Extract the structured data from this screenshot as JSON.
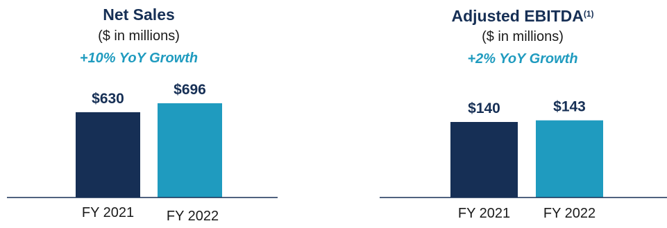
{
  "colors": {
    "dark_navy": "#162f55",
    "teal": "#1f9bbf",
    "axis": "#162f55"
  },
  "net_sales": {
    "title": "Net Sales",
    "subtitle": "($ in millions)",
    "growth": "+10% YoY Growth"
  },
  "ebitda": {
    "title": "Adjusted EBITDA",
    "footnote": "(1)",
    "subtitle": "($ in millions)",
    "growth": "+2% YoY Growth"
  },
  "chart_data": [
    {
      "type": "bar",
      "title": "Net Sales",
      "subtitle": "($ in millions)",
      "categories": [
        "FY 2021",
        "FY 2022"
      ],
      "values": [
        630,
        696
      ],
      "labels": [
        "$630",
        "$696"
      ],
      "colors": [
        "#162f55",
        "#1f9bbf"
      ],
      "xlabel": "",
      "ylabel": "",
      "grid": false,
      "legend": "none"
    },
    {
      "type": "bar",
      "title": "Adjusted EBITDA",
      "subtitle": "($ in millions)",
      "categories": [
        "FY 2021",
        "FY 2022"
      ],
      "values": [
        140,
        143
      ],
      "labels": [
        "$140",
        "$143"
      ],
      "colors": [
        "#162f55",
        "#1f9bbf"
      ],
      "xlabel": "",
      "ylabel": "",
      "grid": false,
      "legend": "none"
    }
  ]
}
